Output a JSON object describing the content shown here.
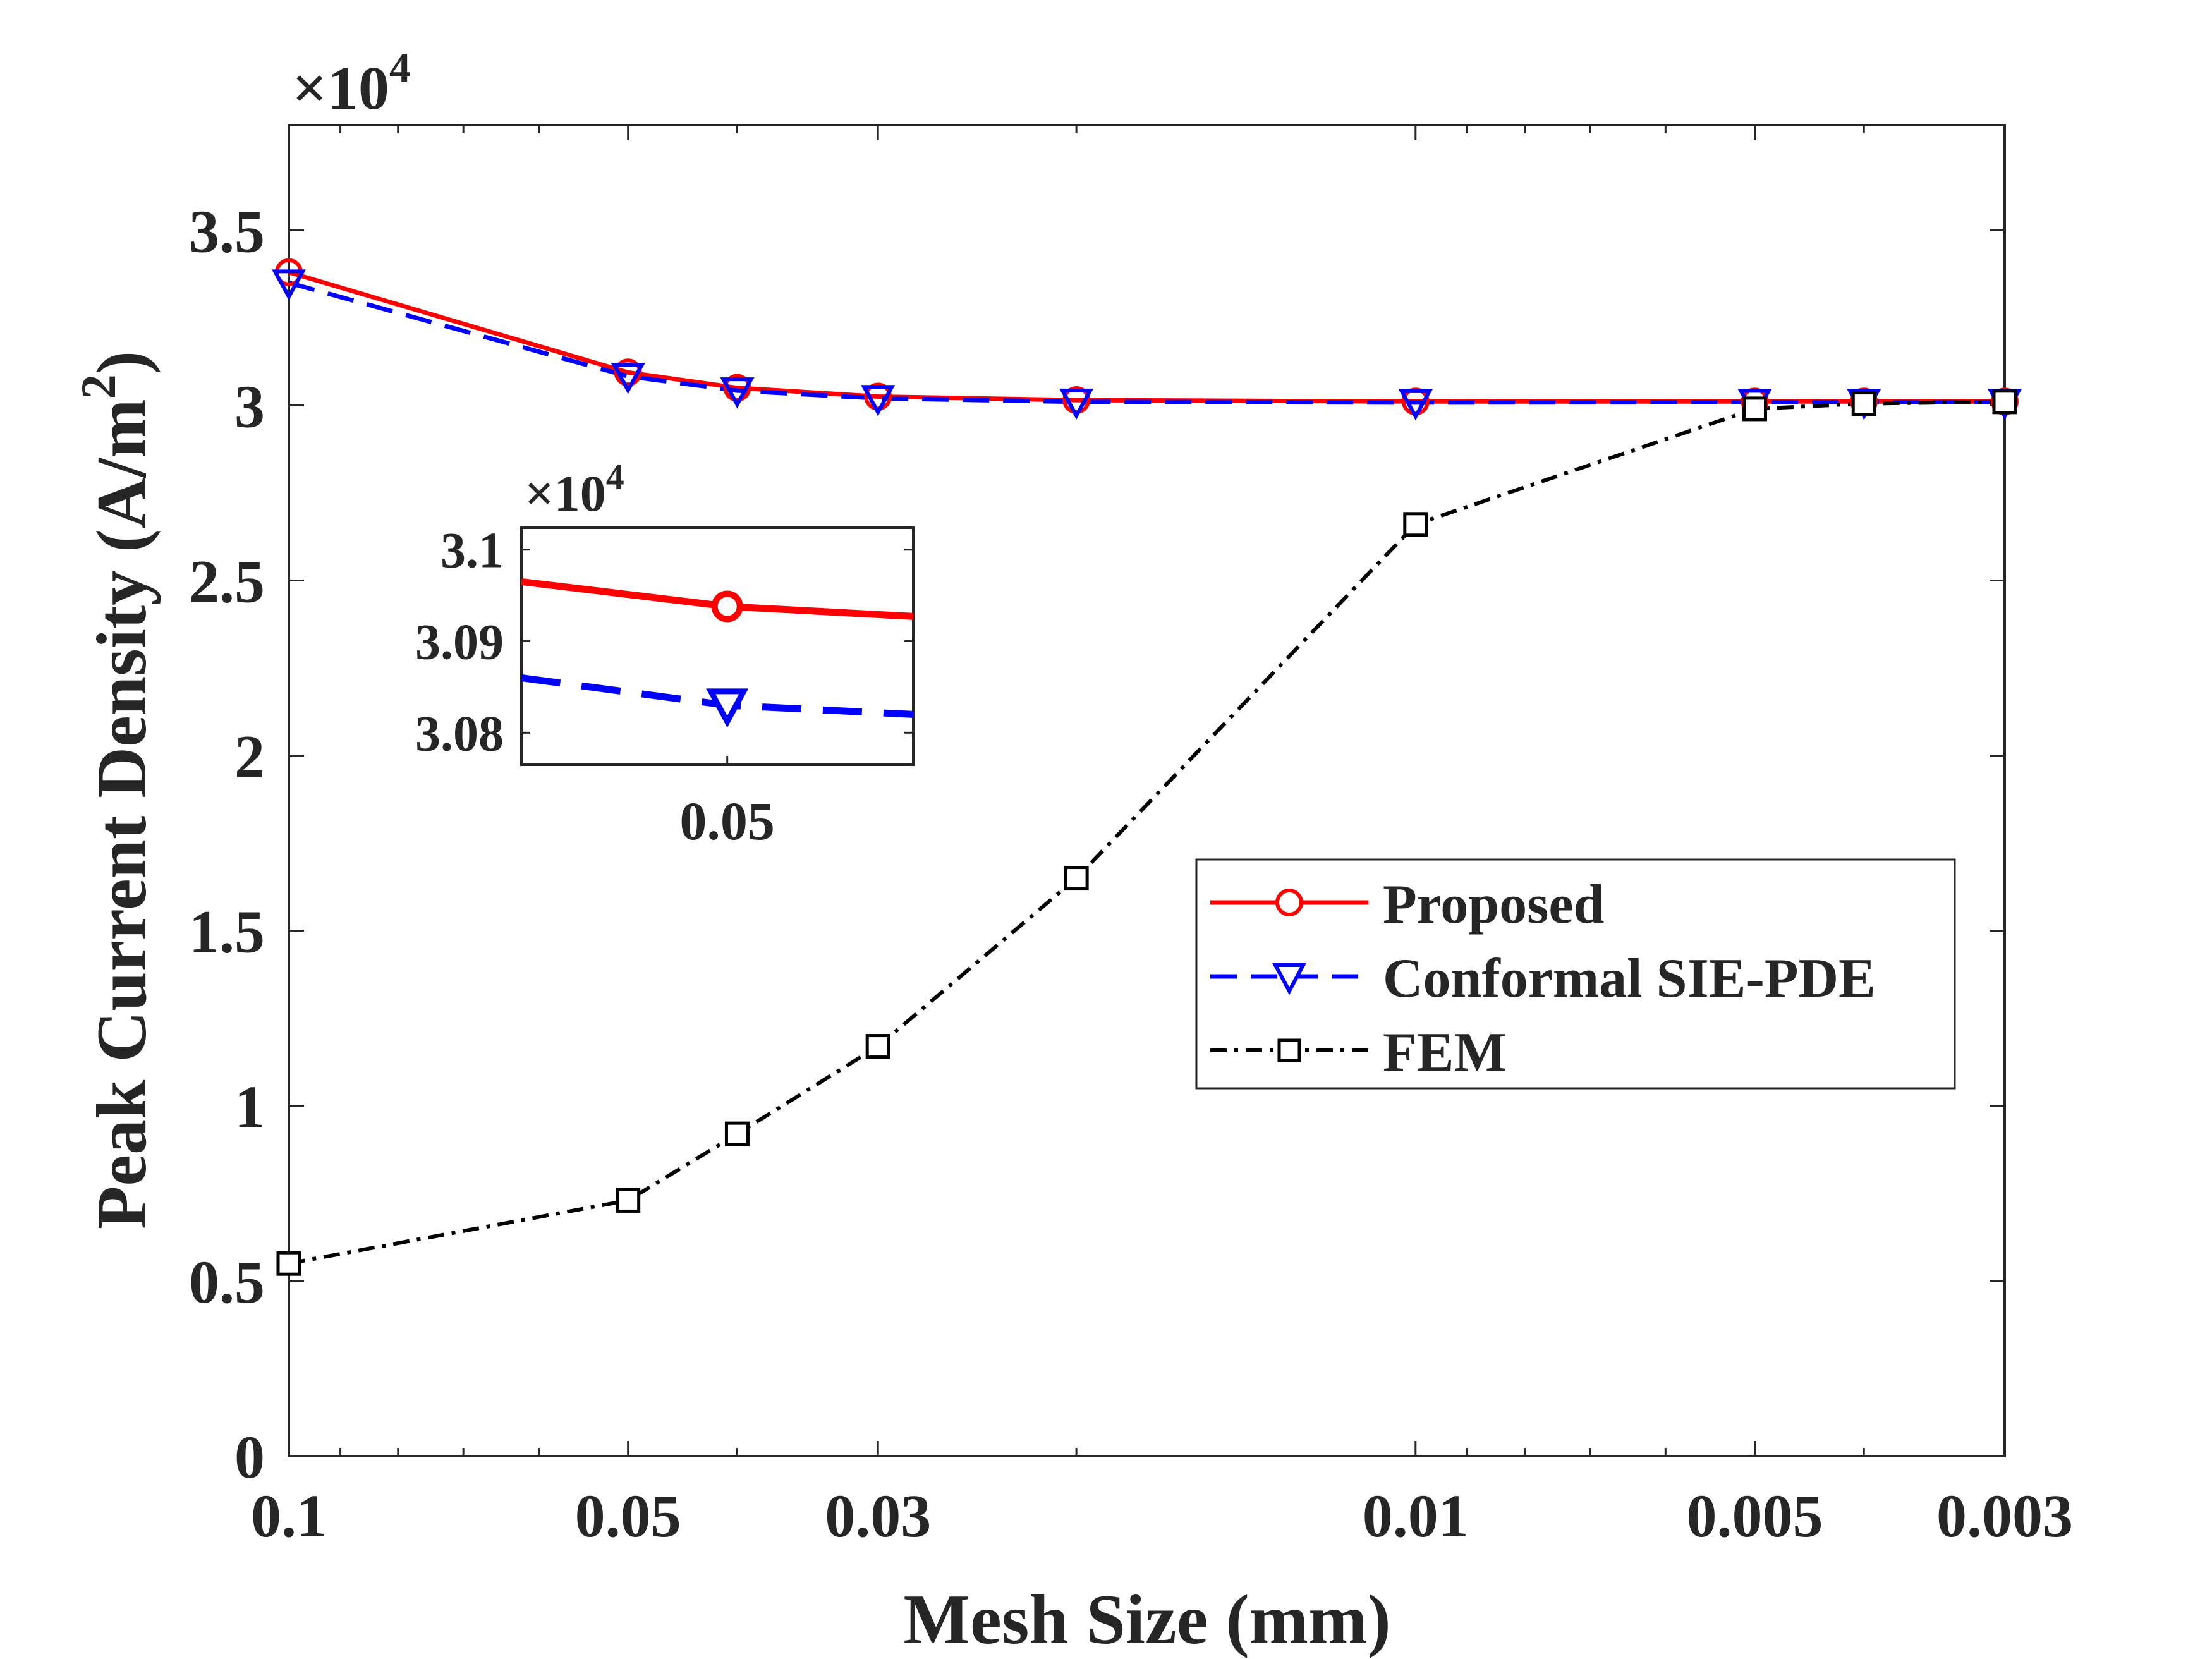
{
  "chart_data": {
    "type": "line",
    "xscale": "log",
    "xreversed": true,
    "xlabel": "Mesh Size (mm)",
    "ylabel_main": "Peak Current Density (A/m",
    "ylabel_sup": "2",
    "ylabel_close": ")",
    "xlim": [
      0.003,
      0.1
    ],
    "ylim": [
      0,
      38000
    ],
    "xticks": [
      0.1,
      0.05,
      0.03,
      0.01,
      0.005,
      0.003
    ],
    "xtick_labels": [
      "0.1",
      "0.05",
      "0.03",
      "0.01",
      "0.005",
      "0.003"
    ],
    "yticks": [
      0,
      5000,
      10000,
      15000,
      20000,
      25000,
      30000,
      35000
    ],
    "ytick_labels": [
      "0",
      "0.5",
      "1",
      "1.5",
      "2",
      "2.5",
      "3",
      "3.5"
    ],
    "multiplier_base": "×10",
    "multiplier_exp": "4",
    "x": [
      0.1,
      0.05,
      0.04,
      0.03,
      0.02,
      0.01,
      0.005,
      0.004,
      0.003
    ],
    "series": [
      {
        "name": "Proposed",
        "color": "#ff0000",
        "marker": "circle",
        "linestyle": "solid",
        "values": [
          33800,
          30940,
          30500,
          30250,
          30150,
          30110,
          30110,
          30110,
          30110
        ]
      },
      {
        "name": "Conformal SIE-PDE",
        "color": "#0000ff",
        "marker": "triangle-down",
        "linestyle": "dashed",
        "values": [
          33500,
          30830,
          30420,
          30200,
          30100,
          30080,
          30090,
          30090,
          30090
        ]
      },
      {
        "name": "FEM",
        "color": "#000000",
        "marker": "square",
        "linestyle": "dashdot",
        "values": [
          5500,
          7300,
          9200,
          11700,
          16500,
          26600,
          29900,
          30050,
          30100
        ]
      }
    ],
    "legend_position": "center-right",
    "inset": {
      "xlim": [
        0.0555,
        0.0455
      ],
      "ylim": [
        30765,
        31024
      ],
      "yticks": [
        30800,
        30900,
        31000
      ],
      "ytick_labels": [
        "3.08",
        "3.09",
        "3.1"
      ],
      "xticks": [
        0.05
      ],
      "xtick_labels": [
        "0.05"
      ],
      "multiplier_base": "×10",
      "multiplier_exp": "4",
      "series": [
        {
          "name": "Proposed",
          "x": [
            0.0555,
            0.05,
            0.0455
          ],
          "values": [
            30965,
            30938,
            30927
          ],
          "marker_index": 1
        },
        {
          "name": "Conformal SIE-PDE",
          "x": [
            0.0555,
            0.05,
            0.0455
          ],
          "values": [
            30860,
            30830,
            30820
          ],
          "marker_index": 1
        }
      ]
    }
  }
}
